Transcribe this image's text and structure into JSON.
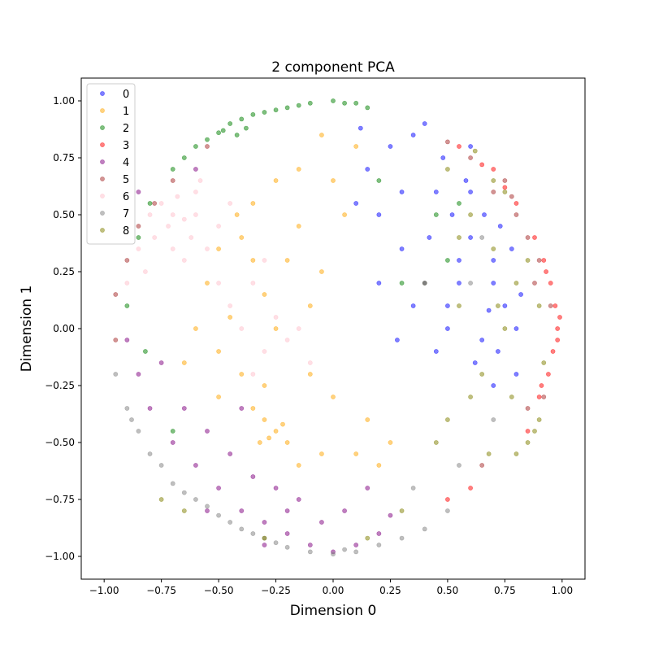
{
  "chart_data": {
    "type": "scatter",
    "title": "2 component PCA",
    "xlabel": "Dimension 0",
    "ylabel": "Dimension 1",
    "xlim": [
      -1.1,
      1.1
    ],
    "ylim": [
      -1.1,
      1.1
    ],
    "xticks": [
      -1.0,
      -0.75,
      -0.5,
      -0.25,
      0.0,
      0.25,
      0.5,
      0.75,
      1.0
    ],
    "yticks": [
      -1.0,
      -0.75,
      -0.5,
      -0.25,
      0.0,
      0.25,
      0.5,
      0.75,
      1.0
    ],
    "xtick_labels": [
      "−1.00",
      "−0.75",
      "−0.50",
      "−0.25",
      "0.00",
      "0.25",
      "0.50",
      "0.75",
      "1.00"
    ],
    "ytick_labels": [
      "−1.00",
      "−0.75",
      "−0.50",
      "−0.25",
      "0.00",
      "0.25",
      "0.50",
      "0.75",
      "1.00"
    ],
    "grid": false,
    "legend": {
      "placement": "top-left"
    },
    "marker_alpha": 0.5,
    "series": [
      {
        "name": "0",
        "color": "#0000ff",
        "points": [
          [
            0.45,
            0.6
          ],
          [
            0.52,
            0.5
          ],
          [
            0.6,
            0.4
          ],
          [
            0.55,
            0.3
          ],
          [
            0.7,
            0.2
          ],
          [
            0.75,
            0.1
          ],
          [
            0.8,
            0.0
          ],
          [
            0.72,
            -0.1
          ],
          [
            0.65,
            -0.05
          ],
          [
            0.5,
            0.1
          ],
          [
            0.4,
            0.2
          ],
          [
            0.3,
            0.35
          ],
          [
            0.2,
            0.5
          ],
          [
            0.15,
            0.7
          ],
          [
            0.25,
            0.8
          ],
          [
            0.35,
            0.85
          ],
          [
            0.6,
            0.8
          ],
          [
            0.7,
            0.3
          ],
          [
            0.78,
            0.35
          ],
          [
            0.82,
            0.15
          ],
          [
            0.58,
            0.65
          ],
          [
            0.48,
            0.75
          ],
          [
            0.42,
            0.4
          ],
          [
            0.35,
            0.1
          ],
          [
            0.28,
            -0.05
          ],
          [
            0.62,
            -0.15
          ],
          [
            0.7,
            -0.25
          ],
          [
            0.55,
            0.2
          ],
          [
            0.66,
            0.5
          ],
          [
            0.5,
            0.0
          ],
          [
            0.3,
            0.6
          ],
          [
            0.1,
            0.55
          ],
          [
            0.2,
            0.2
          ],
          [
            0.45,
            -0.1
          ],
          [
            0.8,
            -0.2
          ],
          [
            0.73,
            0.45
          ],
          [
            0.4,
            0.9
          ],
          [
            0.12,
            0.88
          ],
          [
            0.68,
            0.08
          ],
          [
            0.6,
            0.6
          ]
        ]
      },
      {
        "name": "1",
        "color": "#ffa500",
        "points": [
          [
            -0.25,
            -0.45
          ],
          [
            -0.3,
            -0.4
          ],
          [
            -0.2,
            -0.5
          ],
          [
            -0.35,
            -0.35
          ],
          [
            -0.4,
            -0.2
          ],
          [
            -0.5,
            -0.1
          ],
          [
            -0.45,
            0.05
          ],
          [
            -0.55,
            0.2
          ],
          [
            -0.4,
            0.4
          ],
          [
            -0.35,
            0.55
          ],
          [
            -0.25,
            0.65
          ],
          [
            -0.15,
            0.7
          ],
          [
            -0.05,
            0.85
          ],
          [
            0.1,
            0.8
          ],
          [
            -0.2,
            0.3
          ],
          [
            -0.1,
            0.1
          ],
          [
            0.0,
            -0.3
          ],
          [
            0.1,
            -0.55
          ],
          [
            0.2,
            -0.6
          ],
          [
            -0.05,
            -0.55
          ],
          [
            -0.15,
            -0.6
          ],
          [
            -0.3,
            -0.25
          ],
          [
            -0.6,
            0.0
          ],
          [
            -0.65,
            -0.15
          ],
          [
            -0.5,
            -0.3
          ],
          [
            -0.3,
            0.15
          ],
          [
            -0.15,
            0.45
          ],
          [
            -0.05,
            0.25
          ],
          [
            0.05,
            0.5
          ],
          [
            -0.42,
            0.5
          ],
          [
            -0.28,
            -0.48
          ],
          [
            -0.22,
            -0.42
          ],
          [
            -0.32,
            -0.5
          ],
          [
            0.15,
            -0.4
          ],
          [
            -0.1,
            -0.2
          ],
          [
            -0.35,
            0.3
          ],
          [
            -0.5,
            0.35
          ],
          [
            -0.25,
            0.0
          ],
          [
            0.25,
            -0.5
          ],
          [
            0.0,
            0.65
          ]
        ]
      },
      {
        "name": "2",
        "color": "#008000",
        "points": [
          [
            -0.4,
            0.92
          ],
          [
            -0.35,
            0.94
          ],
          [
            -0.45,
            0.9
          ],
          [
            -0.3,
            0.95
          ],
          [
            -0.2,
            0.97
          ],
          [
            -0.1,
            0.99
          ],
          [
            0.0,
            1.0
          ],
          [
            0.1,
            0.99
          ],
          [
            -0.5,
            0.86
          ],
          [
            -0.6,
            0.8
          ],
          [
            -0.65,
            0.75
          ],
          [
            -0.7,
            0.7
          ],
          [
            -0.25,
            0.96
          ],
          [
            -0.15,
            0.98
          ],
          [
            0.05,
            0.99
          ],
          [
            -0.42,
            0.85
          ],
          [
            -0.38,
            0.88
          ],
          [
            0.3,
            0.2
          ],
          [
            0.5,
            0.3
          ],
          [
            0.55,
            0.55
          ],
          [
            -0.55,
            0.83
          ],
          [
            -0.48,
            0.87
          ],
          [
            0.15,
            0.97
          ],
          [
            -0.8,
            0.55
          ],
          [
            -0.85,
            0.4
          ],
          [
            -0.9,
            0.1
          ],
          [
            -0.82,
            -0.1
          ],
          [
            -0.7,
            -0.45
          ],
          [
            0.45,
            0.5
          ],
          [
            0.2,
            0.65
          ]
        ]
      },
      {
        "name": "3",
        "color": "#ff0000",
        "points": [
          [
            0.98,
            0.0
          ],
          [
            0.97,
            0.1
          ],
          [
            0.96,
            -0.1
          ],
          [
            0.95,
            0.2
          ],
          [
            0.94,
            -0.2
          ],
          [
            0.92,
            0.3
          ],
          [
            0.9,
            -0.3
          ],
          [
            0.88,
            0.4
          ],
          [
            0.85,
            -0.45
          ],
          [
            0.8,
            0.55
          ],
          [
            0.75,
            0.62
          ],
          [
            0.7,
            0.7
          ],
          [
            0.99,
            0.05
          ],
          [
            0.98,
            -0.05
          ],
          [
            0.93,
            0.25
          ],
          [
            0.91,
            -0.25
          ],
          [
            0.6,
            -0.7
          ],
          [
            0.5,
            -0.75
          ],
          [
            0.65,
            0.72
          ],
          [
            0.55,
            0.8
          ]
        ]
      },
      {
        "name": "4",
        "color": "#800080",
        "points": [
          [
            -0.5,
            -0.7
          ],
          [
            -0.4,
            -0.8
          ],
          [
            -0.3,
            -0.85
          ],
          [
            -0.2,
            -0.9
          ],
          [
            -0.1,
            -0.95
          ],
          [
            0.0,
            -0.98
          ],
          [
            0.1,
            -0.95
          ],
          [
            0.2,
            -0.9
          ],
          [
            -0.6,
            -0.6
          ],
          [
            -0.7,
            -0.5
          ],
          [
            -0.8,
            -0.35
          ],
          [
            -0.85,
            -0.2
          ],
          [
            -0.9,
            -0.05
          ],
          [
            -0.55,
            -0.45
          ],
          [
            -0.35,
            -0.65
          ],
          [
            -0.15,
            -0.75
          ],
          [
            0.05,
            -0.8
          ],
          [
            -0.45,
            -0.55
          ],
          [
            -0.65,
            -0.35
          ],
          [
            -0.75,
            -0.15
          ],
          [
            -0.25,
            -0.7
          ],
          [
            0.15,
            -0.7
          ],
          [
            -0.05,
            -0.85
          ],
          [
            -0.3,
            -0.95
          ],
          [
            -0.85,
            0.6
          ],
          [
            -0.6,
            0.7
          ],
          [
            -0.4,
            -0.35
          ],
          [
            0.25,
            -0.82
          ],
          [
            -0.2,
            -0.8
          ],
          [
            -0.55,
            -0.8
          ]
        ]
      },
      {
        "name": "5",
        "color": "#a52a2a",
        "points": [
          [
            0.9,
            0.3
          ],
          [
            0.85,
            0.4
          ],
          [
            0.92,
            -0.3
          ],
          [
            0.88,
            0.2
          ],
          [
            0.8,
            0.5
          ],
          [
            0.95,
            0.1
          ],
          [
            0.7,
            0.6
          ],
          [
            0.75,
            0.65
          ],
          [
            0.6,
            0.75
          ],
          [
            -0.7,
            0.65
          ],
          [
            -0.85,
            0.45
          ],
          [
            -0.9,
            0.3
          ],
          [
            -0.95,
            0.15
          ],
          [
            0.5,
            0.82
          ],
          [
            0.65,
            -0.6
          ],
          [
            -0.55,
            0.8
          ],
          [
            -0.95,
            -0.05
          ],
          [
            0.85,
            -0.35
          ],
          [
            0.78,
            0.58
          ],
          [
            -0.78,
            0.55
          ]
        ]
      },
      {
        "name": "6",
        "color": "#ffc0cb",
        "points": [
          [
            -0.7,
            0.5
          ],
          [
            -0.75,
            0.55
          ],
          [
            -0.65,
            0.48
          ],
          [
            -0.72,
            0.45
          ],
          [
            -0.8,
            0.5
          ],
          [
            -0.6,
            0.5
          ],
          [
            -0.68,
            0.58
          ],
          [
            -0.78,
            0.4
          ],
          [
            -0.55,
            0.35
          ],
          [
            -0.5,
            0.2
          ],
          [
            -0.45,
            0.1
          ],
          [
            -0.4,
            0.0
          ],
          [
            -0.3,
            -0.1
          ],
          [
            -0.35,
            0.2
          ],
          [
            -0.25,
            0.05
          ],
          [
            -0.2,
            -0.05
          ],
          [
            -0.6,
            0.6
          ],
          [
            -0.58,
            0.65
          ],
          [
            -0.85,
            0.35
          ],
          [
            -0.82,
            0.25
          ],
          [
            -0.65,
            0.3
          ],
          [
            -0.5,
            0.45
          ],
          [
            -0.15,
            0.0
          ],
          [
            -0.3,
            0.3
          ],
          [
            -0.7,
            0.35
          ],
          [
            -0.62,
            0.4
          ],
          [
            -0.9,
            0.2
          ],
          [
            -0.45,
            0.55
          ],
          [
            -0.35,
            -0.2
          ],
          [
            -0.1,
            -0.15
          ]
        ]
      },
      {
        "name": "7",
        "color": "#808080",
        "points": [
          [
            -0.8,
            -0.55
          ],
          [
            -0.75,
            -0.6
          ],
          [
            -0.7,
            -0.68
          ],
          [
            -0.6,
            -0.75
          ],
          [
            -0.5,
            -0.82
          ],
          [
            -0.4,
            -0.88
          ],
          [
            -0.3,
            -0.92
          ],
          [
            -0.2,
            -0.96
          ],
          [
            -0.1,
            -0.98
          ],
          [
            0.0,
            -0.99
          ],
          [
            0.1,
            -0.98
          ],
          [
            0.2,
            -0.95
          ],
          [
            -0.85,
            -0.45
          ],
          [
            -0.9,
            -0.35
          ],
          [
            -0.65,
            -0.72
          ],
          [
            -0.55,
            -0.78
          ],
          [
            -0.45,
            -0.85
          ],
          [
            -0.35,
            -0.9
          ],
          [
            0.3,
            -0.92
          ],
          [
            0.4,
            -0.88
          ],
          [
            0.5,
            -0.8
          ],
          [
            -0.95,
            -0.2
          ],
          [
            0.65,
            0.4
          ],
          [
            0.7,
            -0.4
          ],
          [
            0.55,
            -0.6
          ],
          [
            -0.25,
            -0.94
          ],
          [
            0.05,
            -0.97
          ],
          [
            -0.88,
            -0.4
          ],
          [
            0.35,
            -0.7
          ],
          [
            0.6,
            0.2
          ]
        ]
      },
      {
        "name": "8",
        "color": "#808000",
        "points": [
          [
            0.85,
            -0.5
          ],
          [
            0.8,
            -0.55
          ],
          [
            0.9,
            -0.4
          ],
          [
            0.88,
            -0.45
          ],
          [
            0.75,
            0.6
          ],
          [
            0.7,
            0.65
          ],
          [
            0.8,
            0.2
          ],
          [
            0.75,
            0.0
          ],
          [
            0.65,
            -0.2
          ],
          [
            0.6,
            -0.3
          ],
          [
            0.55,
            0.1
          ],
          [
            0.5,
            -0.4
          ],
          [
            0.45,
            -0.5
          ],
          [
            0.7,
            0.35
          ],
          [
            0.6,
            0.5
          ],
          [
            0.5,
            0.7
          ],
          [
            -0.75,
            -0.75
          ],
          [
            -0.65,
            -0.8
          ],
          [
            -0.3,
            -0.92
          ],
          [
            0.15,
            -0.92
          ],
          [
            0.3,
            -0.8
          ],
          [
            0.85,
            0.3
          ],
          [
            0.9,
            0.1
          ],
          [
            0.92,
            -0.15
          ],
          [
            0.4,
            0.2
          ],
          [
            0.55,
            0.4
          ],
          [
            0.78,
            -0.3
          ],
          [
            0.68,
            -0.55
          ],
          [
            0.62,
            0.78
          ],
          [
            0.72,
            0.1
          ]
        ]
      }
    ]
  }
}
